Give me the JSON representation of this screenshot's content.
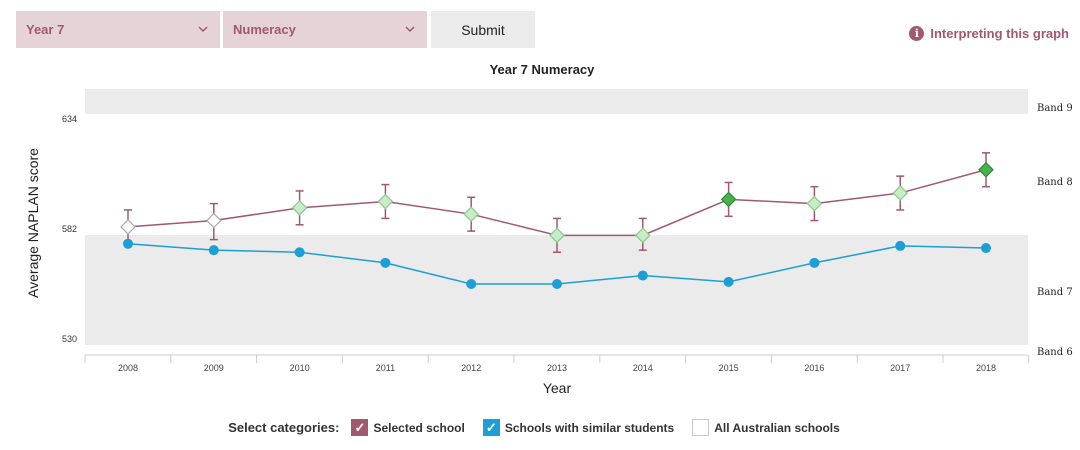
{
  "controls": {
    "year_select": "Year 7",
    "subject_select": "Numeracy",
    "submit_label": "Submit",
    "interpreting_link": "Interpreting this graph"
  },
  "legend": {
    "title": "Select categories:",
    "items": [
      {
        "label": "Selected school",
        "checked": true,
        "color": "#a2586d"
      },
      {
        "label": "Schools with similar students",
        "checked": true,
        "color": "#1b9fd6"
      },
      {
        "label": "All Australian schools",
        "checked": false
      }
    ]
  },
  "chart_data": {
    "type": "line",
    "title": "Year 7 Numeracy",
    "xlabel": "Year",
    "ylabel": "Average NAPLAN score",
    "x": [
      "2008",
      "2009",
      "2010",
      "2011",
      "2012",
      "2013",
      "2014",
      "2015",
      "2016",
      "2017",
      "2018"
    ],
    "y_ticks": [
      530,
      582,
      634
    ],
    "band_labels": [
      "Band 9",
      "Band 8",
      "Band 7",
      "Band 6"
    ],
    "series": [
      {
        "name": "Selected school",
        "color": "#a2586d",
        "values": [
          583,
          586,
          592,
          595,
          589,
          579,
          579,
          596,
          594,
          599,
          610
        ],
        "error_low": [
          575,
          577,
          584,
          587,
          581,
          571,
          572,
          588,
          586,
          591,
          602
        ],
        "error_high": [
          591,
          594,
          600,
          603,
          597,
          587,
          587,
          604,
          602,
          607,
          618
        ],
        "marker_states": [
          "none",
          "none",
          "light",
          "light",
          "light",
          "light",
          "light",
          "dark",
          "light",
          "light",
          "dark"
        ]
      },
      {
        "name": "Schools with similar students",
        "color": "#1b9fd6",
        "values": [
          575,
          572,
          571,
          566,
          556,
          556,
          560,
          557,
          566,
          574,
          573
        ]
      }
    ]
  }
}
